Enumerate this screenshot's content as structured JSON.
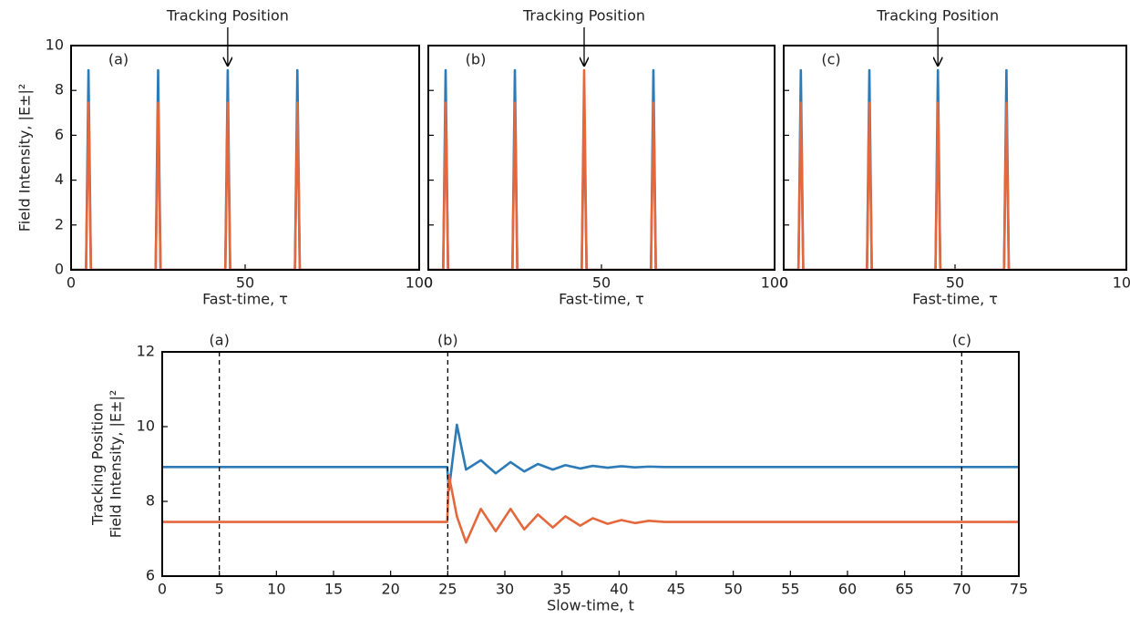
{
  "chart_data": [
    {
      "type": "line",
      "xlabel": "Fast-time, τ",
      "ylabel": [
        "Field Intensity, |E±|²"
      ],
      "panel_label": "(a)",
      "annotation": {
        "text": "Tracking Position",
        "x": 45
      },
      "xlim": [
        0,
        100
      ],
      "ylim": [
        0,
        10
      ],
      "xticks": [
        0,
        50,
        100
      ],
      "yticks": [
        0,
        2,
        4,
        6,
        8,
        10
      ],
      "ytick_labels": true,
      "x": [
        0,
        4.3,
        5,
        5.7,
        24.3,
        25,
        25.7,
        44.3,
        45,
        45.7,
        64.3,
        65,
        65.7,
        100
      ],
      "series": [
        {
          "color": "#2d7bb6",
          "values": [
            0,
            0,
            8.9,
            0,
            0,
            8.9,
            0,
            0,
            8.9,
            0,
            0,
            8.9,
            0,
            0
          ]
        },
        {
          "color": "#e4683c",
          "values": [
            0,
            0,
            7.45,
            0,
            0,
            7.45,
            0,
            0,
            7.45,
            0,
            0,
            7.45,
            0,
            0
          ]
        }
      ]
    },
    {
      "type": "line",
      "xlabel": "Fast-time, τ",
      "panel_label": "(b)",
      "annotation": {
        "text": "Tracking Position",
        "x": 45
      },
      "xlim": [
        0,
        100
      ],
      "ylim": [
        0,
        10
      ],
      "xticks": [
        0,
        50,
        100
      ],
      "yticks": [
        0,
        2,
        4,
        6,
        8,
        10
      ],
      "ytick_labels": false,
      "x": [
        0,
        4.3,
        5,
        5.7,
        24.3,
        25,
        25.7,
        44.3,
        45,
        45.7,
        64.3,
        65,
        65.7,
        100
      ],
      "series": [
        {
          "color": "#2d7bb6",
          "values": [
            0,
            0,
            8.9,
            0,
            0,
            8.9,
            0,
            0,
            7.45,
            0,
            0,
            8.9,
            0,
            0
          ]
        },
        {
          "color": "#e4683c",
          "values": [
            0,
            0,
            7.45,
            0,
            0,
            7.45,
            0,
            0,
            8.9,
            0,
            0,
            7.45,
            0,
            0
          ]
        }
      ]
    },
    {
      "type": "line",
      "xlabel": "Fast-time, τ",
      "panel_label": "(c)",
      "annotation": {
        "text": "Tracking Position",
        "x": 45
      },
      "xlim": [
        0,
        100
      ],
      "ylim": [
        0,
        10
      ],
      "xticks": [
        0,
        50,
        100
      ],
      "yticks": [
        0,
        2,
        4,
        6,
        8,
        10
      ],
      "ytick_labels": false,
      "x": [
        0,
        4.3,
        5,
        5.7,
        24.3,
        25,
        25.7,
        44.3,
        45,
        45.7,
        64.3,
        65,
        65.7,
        100
      ],
      "series": [
        {
          "color": "#2d7bb6",
          "values": [
            0,
            0,
            8.9,
            0,
            0,
            8.9,
            0,
            0,
            8.9,
            0,
            0,
            8.9,
            0,
            0
          ]
        },
        {
          "color": "#e4683c",
          "values": [
            0,
            0,
            7.45,
            0,
            0,
            7.45,
            0,
            0,
            7.45,
            0,
            0,
            7.45,
            0,
            0
          ]
        }
      ]
    },
    {
      "type": "line",
      "xlabel": "Slow-time, t",
      "ylabel": [
        "Tracking Position",
        "Field Intensity, |E±|²"
      ],
      "xlim": [
        0,
        75
      ],
      "ylim": [
        6,
        12
      ],
      "xticks": [
        0,
        5,
        10,
        15,
        20,
        25,
        30,
        35,
        40,
        45,
        50,
        55,
        60,
        65,
        70,
        75
      ],
      "yticks": [
        6,
        8,
        10,
        12
      ],
      "ytick_labels": true,
      "vlines": [
        5,
        25,
        70
      ],
      "vline_labels": [
        "(a)",
        "(b)",
        "(c)"
      ],
      "x": [
        0,
        24.95,
        25.1,
        25.8,
        26.6,
        27.9,
        29.2,
        30.5,
        31.7,
        32.9,
        34.2,
        35.3,
        36.6,
        37.7,
        39,
        40.2,
        41.4,
        42.6,
        44,
        75
      ],
      "series": [
        {
          "color": "#2d7bb6",
          "values": [
            8.92,
            8.92,
            8.3,
            10.05,
            8.85,
            9.1,
            8.75,
            9.05,
            8.8,
            9.0,
            8.85,
            8.97,
            8.88,
            8.95,
            8.9,
            8.94,
            8.91,
            8.93,
            8.92,
            8.92
          ]
        },
        {
          "color": "#e4683c",
          "values": [
            7.45,
            7.45,
            8.7,
            7.6,
            6.9,
            7.8,
            7.2,
            7.8,
            7.25,
            7.65,
            7.3,
            7.6,
            7.35,
            7.55,
            7.4,
            7.5,
            7.42,
            7.48,
            7.45,
            7.45
          ]
        }
      ]
    }
  ]
}
